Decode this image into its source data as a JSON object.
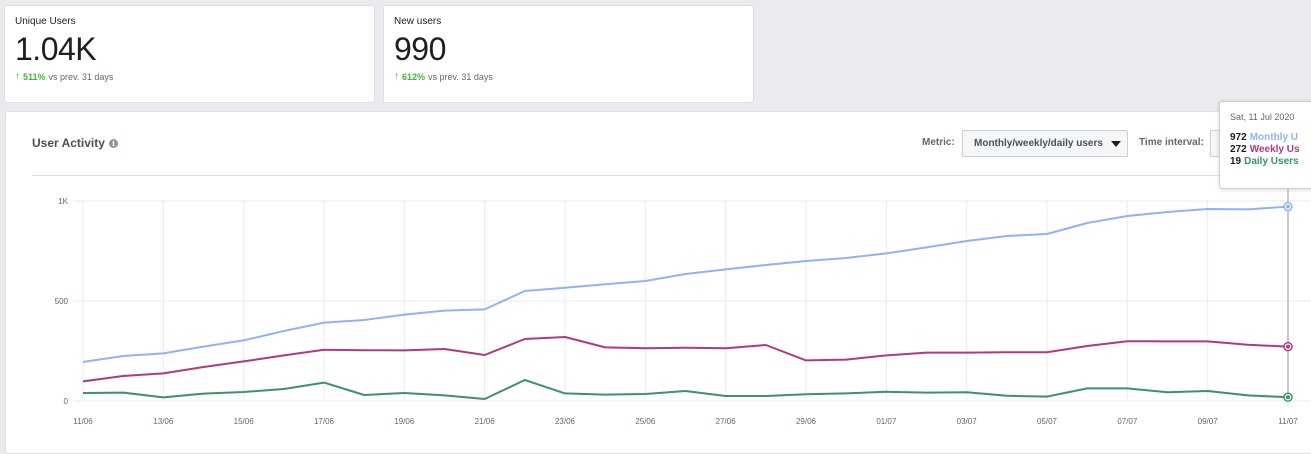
{
  "cards": [
    {
      "label": "Unique Users",
      "value": "1.04K",
      "change_pct": "511%",
      "change_text": "vs prev. 31 days",
      "arrow": "↑"
    },
    {
      "label": "New users",
      "value": "990",
      "change_pct": "612%",
      "change_text": "vs prev. 31 days",
      "arrow": "↑"
    }
  ],
  "panel": {
    "title": "User Activity",
    "info_icon": "i",
    "metric_label": "Metric:",
    "metric_value": "Monthly/weekly/daily users",
    "interval_label": "Time interval:"
  },
  "tooltip": {
    "date": "Sat, 11 Jul 2020",
    "rows": [
      {
        "value": "972",
        "name": "Monthly U",
        "color": "#8fb3f5"
      },
      {
        "value": "272",
        "name": "Weekly Us",
        "color": "#b2387f"
      },
      {
        "value": "19",
        "name": "Daily Users",
        "color": "#3a9466"
      }
    ]
  },
  "chart_data": {
    "type": "line",
    "x": [
      "11/06",
      "12/06",
      "13/06",
      "14/06",
      "15/06",
      "16/06",
      "17/06",
      "18/06",
      "19/06",
      "20/06",
      "21/06",
      "22/06",
      "23/06",
      "24/06",
      "25/06",
      "26/06",
      "27/06",
      "28/06",
      "29/06",
      "30/06",
      "01/07",
      "02/07",
      "03/07",
      "04/07",
      "05/07",
      "06/07",
      "07/07",
      "08/07",
      "09/07",
      "10/07",
      "11/07"
    ],
    "x_tick_labels": [
      "11/06",
      "13/06",
      "15/06",
      "17/06",
      "19/06",
      "21/06",
      "23/06",
      "25/06",
      "27/06",
      "29/06",
      "01/07",
      "03/07",
      "05/07",
      "07/07",
      "09/07",
      "11/07"
    ],
    "y_tick_labels": [
      "0",
      "500",
      "1K"
    ],
    "ylim": [
      0,
      1000
    ],
    "grid": true,
    "series": [
      {
        "name": "Monthly Users",
        "color": "#8fb3f5",
        "values": [
          195,
          225,
          238,
          272,
          303,
          350,
          392,
          405,
          432,
          452,
          458,
          550,
          566,
          584,
          600,
          635,
          658,
          680,
          700,
          715,
          738,
          768,
          800,
          825,
          835,
          890,
          925,
          945,
          960,
          958,
          972
        ]
      },
      {
        "name": "Weekly Users",
        "color": "#b2387f",
        "values": [
          98,
          125,
          138,
          170,
          198,
          228,
          256,
          254,
          253,
          260,
          230,
          310,
          320,
          268,
          264,
          266,
          264,
          280,
          203,
          207,
          228,
          242,
          242,
          244,
          244,
          275,
          299,
          298,
          298,
          281,
          272
        ]
      },
      {
        "name": "Daily Users",
        "color": "#3a9466",
        "values": [
          40,
          42,
          18,
          37,
          45,
          60,
          92,
          30,
          40,
          28,
          10,
          105,
          38,
          32,
          35,
          50,
          25,
          25,
          34,
          38,
          46,
          42,
          44,
          26,
          22,
          63,
          63,
          44,
          50,
          28,
          19
        ]
      }
    ],
    "highlight_index": 30
  }
}
